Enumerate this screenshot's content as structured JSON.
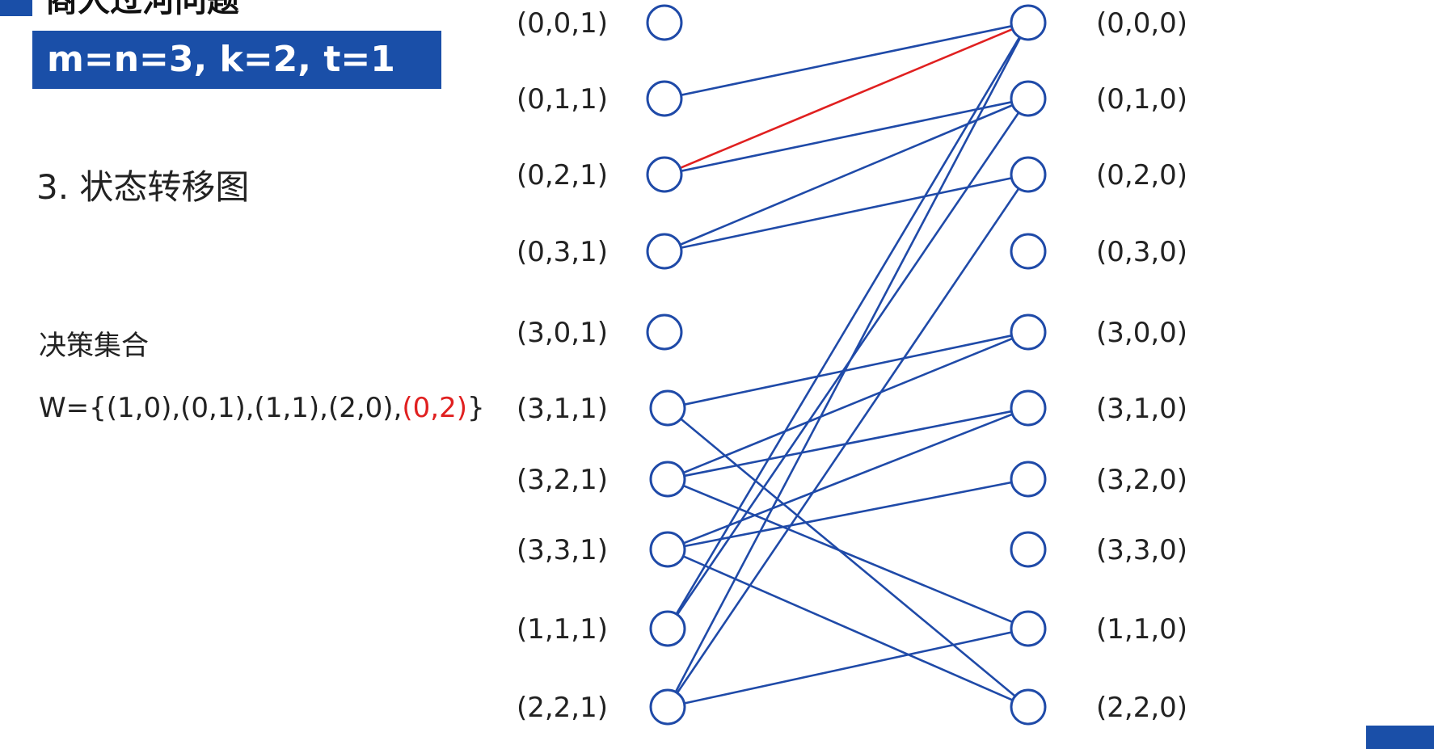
{
  "header": {
    "title": "商人过河问题",
    "params": "m=n=3, k=2, t=1"
  },
  "section_title": "3. 状态转移图",
  "decision": {
    "label": "决策集合",
    "prefix": "W={(1,0),(0,1),(1,1),(2,0),",
    "highlight": "(0,2)",
    "suffix": "}"
  },
  "colors": {
    "brand": "#1a4fa8",
    "edge": "#1f4aa8",
    "highlight": "#e02020"
  },
  "left_states": [
    "(0,0,1)",
    "(0,1,1)",
    "(0,2,1)",
    "(0,3,1)",
    "(3,0,1)",
    "(3,1,1)",
    "(3,2,1)",
    "(3,3,1)",
    "(1,1,1)",
    "(2,2,1)"
  ],
  "right_states": [
    "(0,0,0)",
    "(0,1,0)",
    "(0,2,0)",
    "(0,3,0)",
    "(3,0,0)",
    "(3,1,0)",
    "(3,2,0)",
    "(3,3,0)",
    "(1,1,0)",
    "(2,2,0)"
  ],
  "edges": [
    {
      "from": "(0,1,1)",
      "to": "(0,0,0)"
    },
    {
      "from": "(0,2,1)",
      "to": "(0,0,0)",
      "highlight": true
    },
    {
      "from": "(0,2,1)",
      "to": "(0,1,0)"
    },
    {
      "from": "(0,3,1)",
      "to": "(0,1,0)"
    },
    {
      "from": "(0,3,1)",
      "to": "(0,2,0)"
    },
    {
      "from": "(3,1,1)",
      "to": "(3,0,0)"
    },
    {
      "from": "(3,1,1)",
      "to": "(2,2,0)"
    },
    {
      "from": "(3,2,1)",
      "to": "(3,0,0)"
    },
    {
      "from": "(3,2,1)",
      "to": "(3,1,0)"
    },
    {
      "from": "(3,2,1)",
      "to": "(1,1,0)"
    },
    {
      "from": "(3,3,1)",
      "to": "(3,1,0)"
    },
    {
      "from": "(3,3,1)",
      "to": "(3,2,0)"
    },
    {
      "from": "(3,3,1)",
      "to": "(2,2,0)"
    },
    {
      "from": "(1,1,1)",
      "to": "(0,0,0)"
    },
    {
      "from": "(1,1,1)",
      "to": "(0,1,0)"
    },
    {
      "from": "(2,2,1)",
      "to": "(0,2,0)"
    },
    {
      "from": "(2,2,1)",
      "to": "(1,1,0)"
    },
    {
      "from": "(2,2,1)",
      "to": "(0,0,0)"
    }
  ]
}
